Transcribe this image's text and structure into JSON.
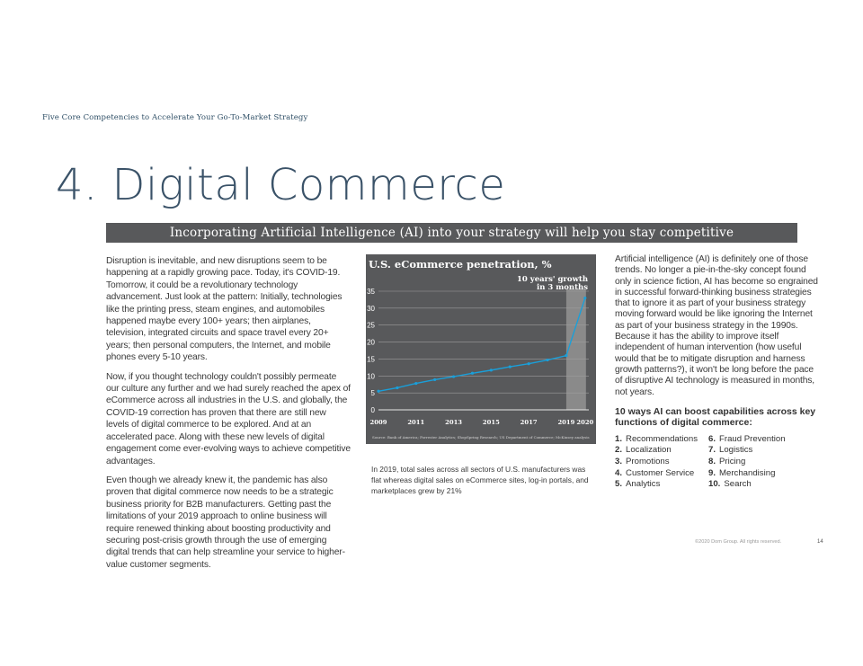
{
  "header": {
    "running_head": "Five Core Competencies to Accelerate Your Go-To-Market Strategy",
    "title": "4. Digital Commerce",
    "banner": "Incorporating Artificial Intelligence (AI) into your strategy will help you stay competitive"
  },
  "left_column": {
    "paragraphs": [
      "Disruption is inevitable, and new disruptions seem to be happening at a rapidly growing pace. Today, it's COVID-19. Tomorrow, it could be a revolutionary technology advancement. Just look at the pattern: Initially, technologies like the printing press, steam engines, and automobiles happened maybe every 100+ years; then airplanes, television, integrated circuits and space travel every 20+ years; then personal computers, the Internet, and mobile phones every 5-10 years.",
      "Now, if you thought technology couldn't possibly permeate our culture any further and we had surely reached the apex of eCommerce across all industries in the U.S. and globally, the COVID-19 correction has proven that there are still new levels of digital commerce to be explored. And at an accelerated pace. Along with these new levels of digital engagement come ever-evolving ways to achieve competitive advantages.",
      "Even though we already knew it, the pandemic has also proven that digital commerce now needs to be a strategic business priority for B2B manufacturers. Getting past the limitations of your 2019 approach to online business will require renewed thinking about boosting productivity and securing post-crisis growth through the use of emerging digital trends that can help streamline your service to higher-value customer segments."
    ]
  },
  "chart_data": {
    "type": "line",
    "title": "U.S. eCommerce penetration, %",
    "annotation_line1": "10 years' growth",
    "annotation_line2": "in 3 months",
    "x_tick_labels": [
      "2009",
      "2011",
      "2013",
      "2015",
      "2017",
      "2019",
      "2020"
    ],
    "x_ticks": [
      2009,
      2011,
      2013,
      2015,
      2017,
      2019,
      2020
    ],
    "y_ticks": [
      0,
      5,
      10,
      15,
      20,
      25,
      30,
      35
    ],
    "xlim": [
      2009,
      2020.2
    ],
    "ylim": [
      0,
      35
    ],
    "highlight_range": [
      2019,
      2020
    ],
    "series": [
      {
        "x": [
          2009,
          2010,
          2011,
          2012,
          2013,
          2014,
          2015,
          2016,
          2017,
          2018,
          2019,
          2020
        ],
        "values": [
          5.5,
          6.5,
          7.8,
          8.9,
          9.8,
          10.8,
          11.7,
          12.7,
          13.6,
          14.7,
          16.0,
          33.0
        ]
      }
    ],
    "source": "Source: Bank of America; Forrester Analytics; ShopSpring Research; US Department of Commerce; McKinsey analysis",
    "grid": true,
    "colors": {
      "line": "#1a9fd9",
      "background": "#58595b",
      "highlight": "#8a8a8a"
    }
  },
  "chart_caption": "In 2019, total sales across all sectors of U.S. manufacturers was flat whereas digital sales on eCommerce sites, log-in portals, and marketplaces grew by 21%",
  "right_column": {
    "paragraph": "Artificial intelligence (AI) is definitely one of those trends. No longer a pie-in-the-sky concept found only in science fiction, AI has become so engrained in successful forward-thinking business strategies that to ignore it as part of your business strategy moving forward would be like ignoring the Internet as part of your business strategy in the 1990s. Because it has the ability to improve itself independent of human intervention (how useful would that be to mitigate disruption and harness growth patterns?), it won't be long before the pace of disruptive AI technology is measured in months, not years.",
    "ways_heading": "10 ways AI can boost capabilities across key functions of digital commerce:",
    "ways": [
      {
        "num": "1.",
        "label": "Recommendations"
      },
      {
        "num": "6.",
        "label": "Fraud Prevention"
      },
      {
        "num": "2.",
        "label": "Localization"
      },
      {
        "num": "7.",
        "label": "Logistics"
      },
      {
        "num": "3.",
        "label": "Promotions"
      },
      {
        "num": "8.",
        "label": "Pricing"
      },
      {
        "num": "4.",
        "label": "Customer Service"
      },
      {
        "num": "9.",
        "label": "Merchandising"
      },
      {
        "num": "5.",
        "label": "Analytics"
      },
      {
        "num": "10.",
        "label": "Search"
      }
    ]
  },
  "footer": {
    "copyright": "©2020 Dom Group. All rights reserved.",
    "page_number": "14"
  }
}
